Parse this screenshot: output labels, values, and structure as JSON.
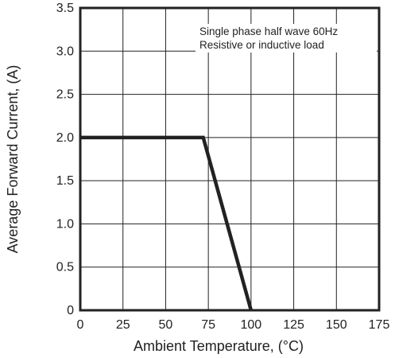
{
  "chart_data": {
    "type": "line",
    "xlabel": "Ambient Temperature, (°C)",
    "ylabel": "Average Forward Current, (A)",
    "xlim": [
      0,
      175
    ],
    "ylim": [
      0,
      3.5
    ],
    "x_ticks": [
      0,
      25,
      50,
      75,
      100,
      125,
      150,
      175
    ],
    "x_tick_labels": [
      "0",
      "25",
      "50",
      "75",
      "100",
      "125",
      "150",
      "175"
    ],
    "y_ticks": [
      0,
      0.5,
      1.0,
      1.5,
      2.0,
      2.5,
      3.0,
      3.5
    ],
    "y_tick_labels": [
      "0",
      "0.5",
      "1.0",
      "1.5",
      "2.0",
      "2.5",
      "3.0",
      "3.5"
    ],
    "grid": true,
    "series": [
      {
        "x": [
          0,
          72,
          100
        ],
        "y": [
          2.0,
          2.0,
          0
        ]
      }
    ],
    "annotations": [
      "Single phase half wave 60Hz",
      "Resistive or inductive load"
    ],
    "colors": {
      "line": "#222222",
      "grid": "#222222",
      "frame": "#222222",
      "background": "#ffffff"
    }
  }
}
